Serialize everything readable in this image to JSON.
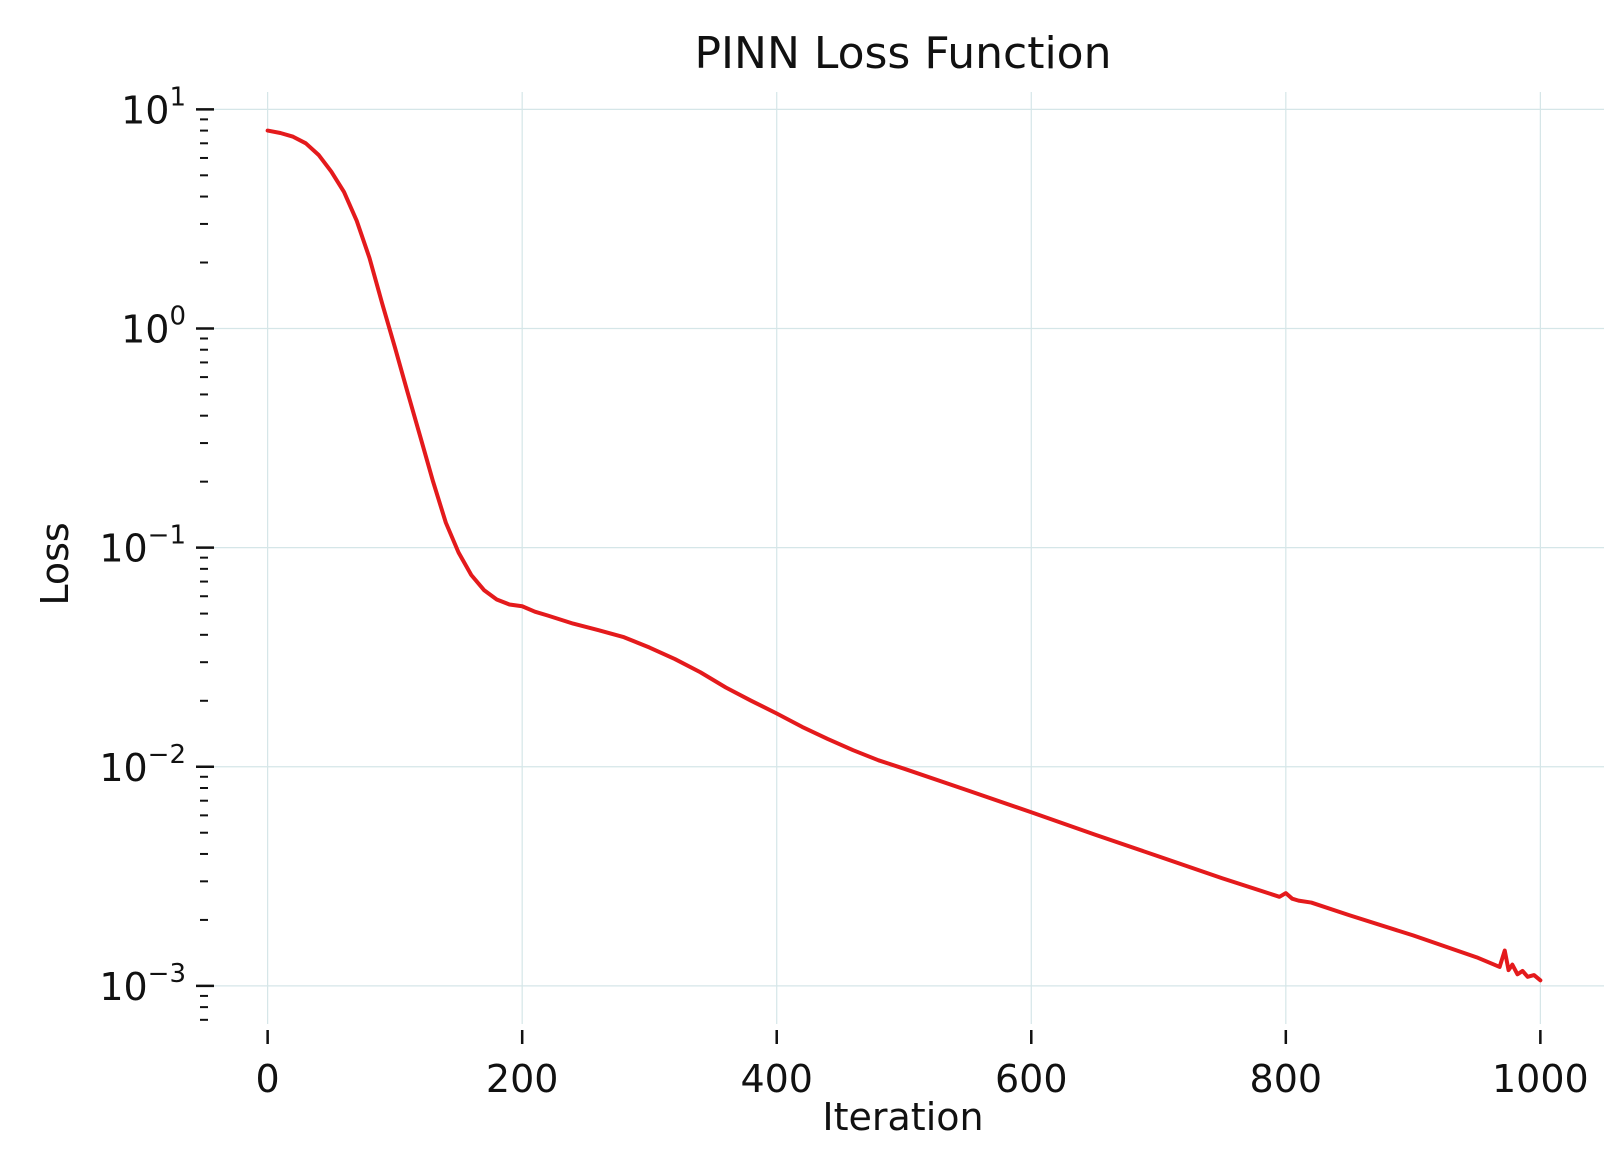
{
  "chart_data": {
    "type": "line",
    "title": "PINN Loss Function",
    "xlabel": "Iteration",
    "ylabel": "Loss",
    "yscale": "log",
    "xlim": [
      -50,
      1050
    ],
    "ylim": [
      0.00067,
      12
    ],
    "grid": true,
    "line_color": "#e41a1c",
    "grid_color": "#d5e6e8",
    "x_ticks": [
      0,
      200,
      400,
      600,
      800,
      1000
    ],
    "x_tick_labels": [
      "0",
      "200",
      "400",
      "600",
      "800",
      "1000"
    ],
    "y_ticks": [
      10,
      1,
      0.1,
      0.01,
      0.001
    ],
    "y_tick_labels": [
      {
        "base": "10",
        "exp": "1"
      },
      {
        "base": "10",
        "exp": "0"
      },
      {
        "base": "10",
        "exp": "−1"
      },
      {
        "base": "10",
        "exp": "−2"
      },
      {
        "base": "10",
        "exp": "−3"
      }
    ],
    "series": [
      {
        "x": [
          0,
          10,
          20,
          30,
          40,
          50,
          60,
          70,
          80,
          90,
          100,
          110,
          120,
          130,
          140,
          150,
          160,
          170,
          180,
          190,
          200,
          210,
          220,
          240,
          260,
          280,
          300,
          320,
          340,
          360,
          380,
          400,
          420,
          440,
          460,
          480,
          500,
          550,
          600,
          650,
          700,
          750,
          795,
          800,
          805,
          810,
          820,
          850,
          900,
          950,
          968,
          972,
          975,
          978,
          982,
          986,
          990,
          995,
          1000
        ],
        "y": [
          8.0,
          7.8,
          7.5,
          7.0,
          6.2,
          5.2,
          4.2,
          3.1,
          2.1,
          1.3,
          0.82,
          0.51,
          0.32,
          0.2,
          0.13,
          0.095,
          0.075,
          0.064,
          0.058,
          0.055,
          0.054,
          0.051,
          0.049,
          0.045,
          0.042,
          0.039,
          0.035,
          0.031,
          0.027,
          0.023,
          0.02,
          0.0175,
          0.0152,
          0.0134,
          0.0119,
          0.0107,
          0.0098,
          0.0078,
          0.0062,
          0.0049,
          0.0039,
          0.0031,
          0.00255,
          0.00265,
          0.0025,
          0.00245,
          0.0024,
          0.0021,
          0.0017,
          0.00135,
          0.00122,
          0.00145,
          0.00118,
          0.00125,
          0.00113,
          0.00117,
          0.0011,
          0.00112,
          0.00106
        ]
      }
    ]
  }
}
